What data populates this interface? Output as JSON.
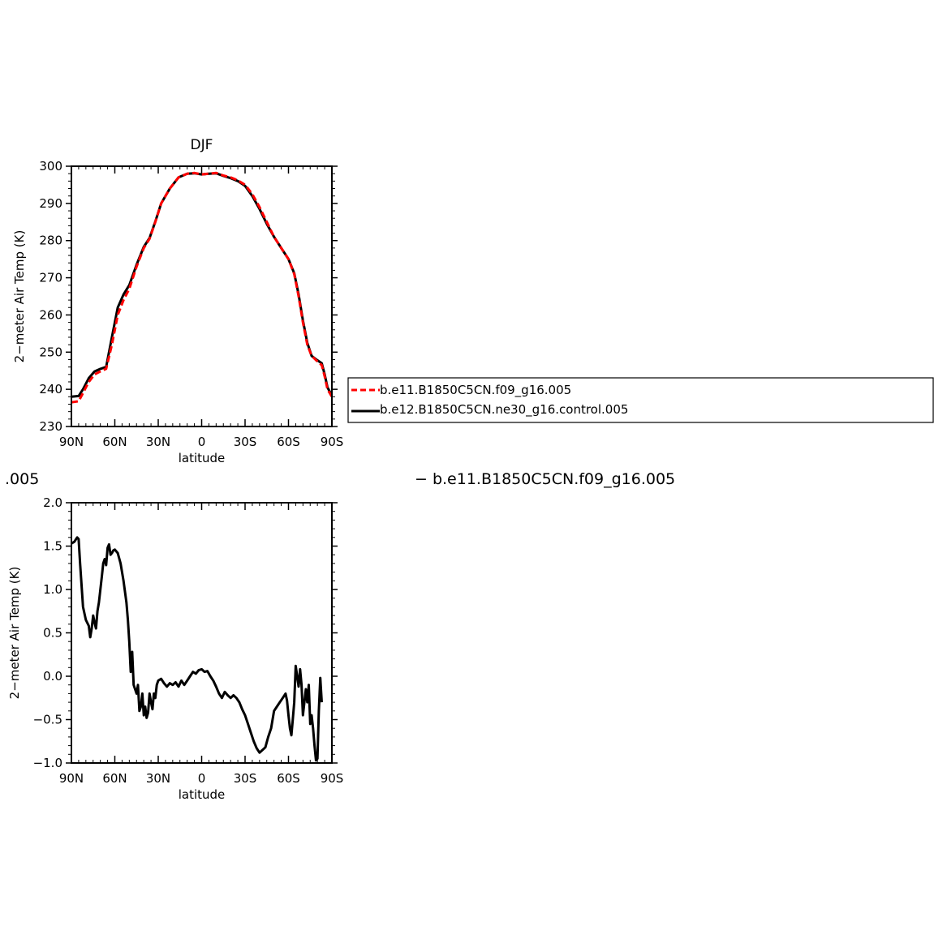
{
  "chart_data": [
    {
      "type": "line",
      "title": "DJF",
      "xlabel": "latitude",
      "ylabel": "2−meter Air Temp (K)",
      "xlim": [
        90,
        -90
      ],
      "ylim": [
        230,
        300
      ],
      "xticks": [
        90,
        60,
        30,
        0,
        -30,
        -60,
        -90
      ],
      "xtick_labels": [
        "90N",
        "60N",
        "30N",
        "0",
        "30S",
        "60S",
        "90S"
      ],
      "yticks": [
        230,
        240,
        250,
        260,
        270,
        280,
        290,
        300
      ],
      "ytick_labels": [
        "230",
        "240",
        "250",
        "260",
        "270",
        "280",
        "290",
        "300"
      ],
      "legend_position": "right of plot",
      "series": [
        {
          "name": "b.e11.B1850C5CN.f09_g16.005",
          "color": "#ff0000",
          "style": "dashed",
          "points": [
            [
              90,
              236.5
            ],
            [
              85,
              236.8
            ],
            [
              82,
              239
            ],
            [
              78,
              242
            ],
            [
              74,
              244
            ],
            [
              70,
              244.8
            ],
            [
              66,
              245.5
            ],
            [
              62,
              252
            ],
            [
              58,
              260
            ],
            [
              54,
              264
            ],
            [
              50,
              267
            ],
            [
              45,
              273
            ],
            [
              40,
              278
            ],
            [
              36,
              280.5
            ],
            [
              32,
              285
            ],
            [
              28,
              290
            ],
            [
              22,
              294
            ],
            [
              16,
              297
            ],
            [
              10,
              298
            ],
            [
              5,
              298.2
            ],
            [
              0,
              297.8
            ],
            [
              -5,
              298
            ],
            [
              -10,
              298.2
            ],
            [
              -15,
              297.5
            ],
            [
              -20,
              297
            ],
            [
              -25,
              296.2
            ],
            [
              -30,
              295
            ],
            [
              -35,
              292.5
            ],
            [
              -40,
              289
            ],
            [
              -45,
              285
            ],
            [
              -50,
              281
            ],
            [
              -55,
              278
            ],
            [
              -60,
              275
            ],
            [
              -64,
              271
            ],
            [
              -67,
              265
            ],
            [
              -70,
              258
            ],
            [
              -73,
              252
            ],
            [
              -76,
              249
            ],
            [
              -80,
              247.5
            ],
            [
              -83,
              246.5
            ],
            [
              -85,
              243.5
            ],
            [
              -87,
              240
            ],
            [
              -90,
              238
            ]
          ]
        },
        {
          "name": "b.e12.B1850C5CN.ne30_g16.control.005",
          "color": "#000000",
          "style": "solid",
          "points": [
            [
              90,
              238
            ],
            [
              85,
              238.2
            ],
            [
              82,
              240
            ],
            [
              78,
              243
            ],
            [
              74,
              244.8
            ],
            [
              70,
              245.5
            ],
            [
              66,
              246
            ],
            [
              62,
              254
            ],
            [
              58,
              262
            ],
            [
              54,
              265.5
            ],
            [
              50,
              268
            ],
            [
              45,
              273.5
            ],
            [
              40,
              278.3
            ],
            [
              36,
              280.7
            ],
            [
              32,
              285.1
            ],
            [
              28,
              290
            ],
            [
              22,
              294
            ],
            [
              16,
              297
            ],
            [
              10,
              298
            ],
            [
              5,
              298.1
            ],
            [
              0,
              297.8
            ],
            [
              -5,
              298
            ],
            [
              -10,
              298.1
            ],
            [
              -15,
              297.4
            ],
            [
              -20,
              296.8
            ],
            [
              -25,
              296
            ],
            [
              -30,
              294.7
            ],
            [
              -35,
              292
            ],
            [
              -40,
              288.5
            ],
            [
              -45,
              284.5
            ],
            [
              -50,
              281
            ],
            [
              -55,
              278
            ],
            [
              -60,
              275
            ],
            [
              -64,
              271.2
            ],
            [
              -67,
              265.5
            ],
            [
              -70,
              258.5
            ],
            [
              -73,
              252.5
            ],
            [
              -76,
              249
            ],
            [
              -80,
              247.8
            ],
            [
              -83,
              247
            ],
            [
              -85,
              244
            ],
            [
              -87,
              240.5
            ],
            [
              -90,
              238.3
            ]
          ]
        }
      ]
    },
    {
      "type": "line",
      "title": "",
      "xlabel": "latitude",
      "ylabel": "2−meter Air Temp (K)",
      "xlim": [
        90,
        -90
      ],
      "ylim": [
        -1.0,
        2.0
      ],
      "xticks": [
        90,
        60,
        30,
        0,
        -30,
        -60,
        -90
      ],
      "xtick_labels": [
        "90N",
        "60N",
        "30N",
        "0",
        "30S",
        "60S",
        "90S"
      ],
      "yticks": [
        -1.0,
        -0.5,
        0.0,
        0.5,
        1.0,
        1.5,
        2.0
      ],
      "ytick_labels": [
        "−1.0",
        "−0.5",
        "0.0",
        "0.5",
        "1.0",
        "1.5",
        "2.0"
      ],
      "series": [
        {
          "color": "#000000",
          "style": "solid",
          "points": [
            [
              90,
              1.53
            ],
            [
              88,
              1.55
            ],
            [
              86,
              1.6
            ],
            [
              85,
              1.58
            ],
            [
              84,
              1.3
            ],
            [
              82,
              0.8
            ],
            [
              80,
              0.65
            ],
            [
              78,
              0.58
            ],
            [
              77,
              0.45
            ],
            [
              76,
              0.55
            ],
            [
              75,
              0.7
            ],
            [
              74,
              0.62
            ],
            [
              73,
              0.55
            ],
            [
              72,
              0.75
            ],
            [
              71,
              0.85
            ],
            [
              70,
              1.0
            ],
            [
              69,
              1.15
            ],
            [
              68,
              1.3
            ],
            [
              67,
              1.35
            ],
            [
              66,
              1.28
            ],
            [
              65,
              1.48
            ],
            [
              64,
              1.52
            ],
            [
              63,
              1.4
            ],
            [
              62,
              1.42
            ],
            [
              61,
              1.45
            ],
            [
              60,
              1.46
            ],
            [
              58,
              1.42
            ],
            [
              56,
              1.3
            ],
            [
              54,
              1.1
            ],
            [
              52,
              0.85
            ],
            [
              51,
              0.65
            ],
            [
              50,
              0.4
            ],
            [
              49,
              0.05
            ],
            [
              48,
              0.28
            ],
            [
              47,
              -0.1
            ],
            [
              46,
              -0.15
            ],
            [
              45,
              -0.2
            ],
            [
              44,
              -0.1
            ],
            [
              43,
              -0.4
            ],
            [
              42,
              -0.35
            ],
            [
              41,
              -0.2
            ],
            [
              40,
              -0.45
            ],
            [
              39,
              -0.35
            ],
            [
              38,
              -0.48
            ],
            [
              37,
              -0.42
            ],
            [
              36,
              -0.2
            ],
            [
              35,
              -0.3
            ],
            [
              34,
              -0.38
            ],
            [
              33,
              -0.2
            ],
            [
              32,
              -0.25
            ],
            [
              31,
              -0.1
            ],
            [
              30,
              -0.05
            ],
            [
              28,
              -0.03
            ],
            [
              26,
              -0.08
            ],
            [
              24,
              -0.12
            ],
            [
              22,
              -0.08
            ],
            [
              20,
              -0.1
            ],
            [
              18,
              -0.07
            ],
            [
              16,
              -0.12
            ],
            [
              14,
              -0.05
            ],
            [
              12,
              -0.1
            ],
            [
              10,
              -0.05
            ],
            [
              8,
              0.0
            ],
            [
              6,
              0.05
            ],
            [
              4,
              0.03
            ],
            [
              2,
              0.07
            ],
            [
              0,
              0.08
            ],
            [
              -2,
              0.05
            ],
            [
              -4,
              0.06
            ],
            [
              -6,
              0.0
            ],
            [
              -8,
              -0.05
            ],
            [
              -10,
              -0.12
            ],
            [
              -12,
              -0.2
            ],
            [
              -14,
              -0.25
            ],
            [
              -16,
              -0.18
            ],
            [
              -18,
              -0.22
            ],
            [
              -20,
              -0.25
            ],
            [
              -22,
              -0.22
            ],
            [
              -24,
              -0.25
            ],
            [
              -26,
              -0.3
            ],
            [
              -28,
              -0.38
            ],
            [
              -30,
              -0.45
            ],
            [
              -32,
              -0.55
            ],
            [
              -34,
              -0.65
            ],
            [
              -36,
              -0.75
            ],
            [
              -38,
              -0.83
            ],
            [
              -40,
              -0.88
            ],
            [
              -42,
              -0.85
            ],
            [
              -44,
              -0.82
            ],
            [
              -46,
              -0.7
            ],
            [
              -48,
              -0.6
            ],
            [
              -50,
              -0.4
            ],
            [
              -52,
              -0.35
            ],
            [
              -54,
              -0.3
            ],
            [
              -56,
              -0.25
            ],
            [
              -58,
              -0.2
            ],
            [
              -59,
              -0.28
            ],
            [
              -60,
              -0.45
            ],
            [
              -61,
              -0.6
            ],
            [
              -62,
              -0.68
            ],
            [
              -63,
              -0.5
            ],
            [
              -64,
              -0.3
            ],
            [
              -65,
              0.12
            ],
            [
              -66,
              0.0
            ],
            [
              -67,
              -0.12
            ],
            [
              -68,
              0.08
            ],
            [
              -69,
              -0.1
            ],
            [
              -70,
              -0.45
            ],
            [
              -71,
              -0.3
            ],
            [
              -72,
              -0.15
            ],
            [
              -73,
              -0.3
            ],
            [
              -74,
              -0.1
            ],
            [
              -75,
              -0.55
            ],
            [
              -76,
              -0.45
            ],
            [
              -77,
              -0.6
            ],
            [
              -78,
              -0.8
            ],
            [
              -79,
              -0.97
            ],
            [
              -80,
              -0.95
            ],
            [
              -81,
              -0.4
            ],
            [
              -82,
              -0.02
            ],
            [
              -83,
              -0.3
            ]
          ]
        }
      ]
    }
  ],
  "legend_top": {
    "items": [
      {
        "label": "b.e11.B1850C5CN.f09_g16.005"
      },
      {
        "label": "b.e12.B1850C5CN.ne30_g16.control.005"
      }
    ]
  },
  "stray_texts": {
    "left_fragment": ".005",
    "right_caption": "−  b.e11.B1850C5CN.f09_g16.005"
  }
}
